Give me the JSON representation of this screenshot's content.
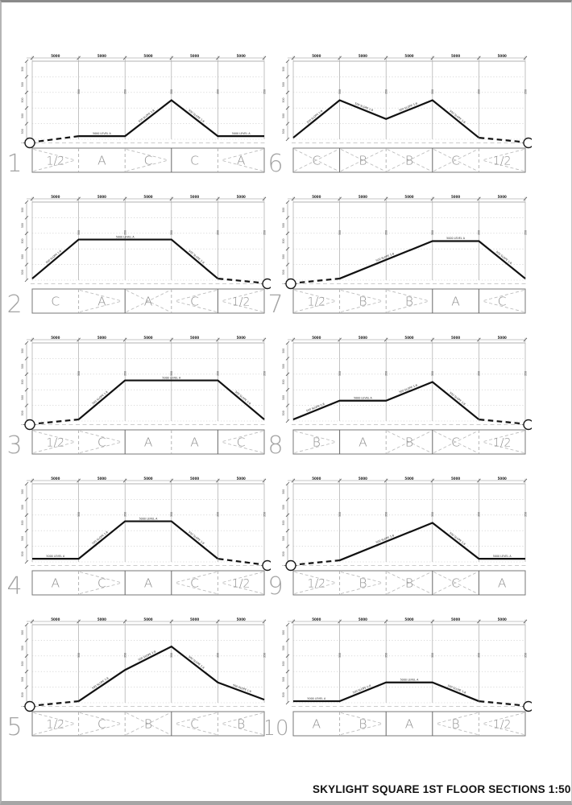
{
  "title": "SKYLIGHT SQUARE 1ST FLOOR SECTIONS 1:50",
  "annotations": {
    "top_dim": "5000",
    "side_dim": "500",
    "col_mark": "350",
    "flat_label": "5000 LEVEL A",
    "slope_label": "500 SLOPE 1:8"
  },
  "sections": [
    {
      "number": "1",
      "circle": "left",
      "labels": [
        "1/2",
        "A",
        "C",
        "C",
        "A"
      ],
      "chevrons": [
        "r",
        "",
        "r",
        "",
        "l"
      ],
      "dividers": [
        "d",
        "d",
        "s",
        "d"
      ],
      "profile_solid": [
        [
          1,
          0.04
        ],
        [
          2,
          0.04
        ],
        [
          3,
          0.5
        ],
        [
          4,
          0.04
        ],
        [
          5,
          0.04
        ]
      ],
      "profile_dashed": [
        [
          0,
          0.04
        ],
        [
          1,
          0.04
        ]
      ]
    },
    {
      "number": "2",
      "circle": "right",
      "labels": [
        "C",
        "A",
        "A",
        "C",
        "1/2"
      ],
      "chevrons": [
        "",
        "r",
        "x",
        "l",
        "l"
      ],
      "dividers": [
        "d",
        "s",
        "d",
        "s"
      ],
      "profile_solid": [
        [
          0,
          0.02
        ],
        [
          1,
          0.52
        ],
        [
          3,
          0.52
        ],
        [
          4,
          0.02
        ]
      ],
      "profile_dashed": [
        [
          4,
          0.02
        ],
        [
          5,
          0.02
        ]
      ]
    },
    {
      "number": "3",
      "circle": "left",
      "labels": [
        "1/2",
        "C",
        "A",
        "A",
        "C"
      ],
      "chevrons": [
        "r",
        "r",
        "",
        "",
        "l"
      ],
      "dividers": [
        "d",
        "s",
        "d",
        "s"
      ],
      "profile_solid": [
        [
          1,
          0.02
        ],
        [
          2,
          0.52
        ],
        [
          4,
          0.52
        ],
        [
          5,
          0.02
        ]
      ],
      "profile_dashed": [
        [
          0,
          0.02
        ],
        [
          1,
          0.02
        ]
      ]
    },
    {
      "number": "4",
      "circle": "right",
      "labels": [
        "A",
        "C",
        "A",
        "C",
        "1/2"
      ],
      "chevrons": [
        "",
        "r",
        "",
        "l",
        "l"
      ],
      "dividers": [
        "d",
        "s",
        "s",
        "d"
      ],
      "profile_solid": [
        [
          0,
          0.04
        ],
        [
          1,
          0.04
        ],
        [
          2,
          0.52
        ],
        [
          3,
          0.52
        ],
        [
          4,
          0.04
        ]
      ],
      "profile_dashed": [
        [
          4,
          0.04
        ],
        [
          5,
          0.04
        ]
      ]
    },
    {
      "number": "5",
      "circle": "left",
      "labels": [
        "1/2",
        "C",
        "B",
        "C",
        "B"
      ],
      "chevrons": [
        "r",
        "r",
        "x",
        "l",
        "l"
      ],
      "dividers": [
        "d",
        "d",
        "s",
        "d"
      ],
      "profile_solid": [
        [
          1,
          0.02
        ],
        [
          2,
          0.42
        ],
        [
          3,
          0.72
        ],
        [
          4,
          0.26
        ],
        [
          5,
          0.04
        ]
      ],
      "profile_dashed": [
        [
          0,
          0.02
        ],
        [
          1,
          0.02
        ]
      ]
    },
    {
      "number": "6",
      "circle": "right",
      "labels": [
        "C",
        "B",
        "B",
        "C",
        "1/2"
      ],
      "chevrons": [
        "x",
        "x",
        "x",
        "x",
        "l"
      ],
      "dividers": [
        "s",
        "d",
        "s",
        "d"
      ],
      "profile_solid": [
        [
          0,
          0.02
        ],
        [
          1,
          0.5
        ],
        [
          2,
          0.26
        ],
        [
          3,
          0.5
        ],
        [
          4,
          0.02
        ]
      ],
      "profile_dashed": [
        [
          4,
          0.02
        ],
        [
          5,
          0.02
        ]
      ]
    },
    {
      "number": "7",
      "circle": "left",
      "labels": [
        "1/2",
        "B",
        "B",
        "A",
        "C"
      ],
      "chevrons": [
        "r",
        "r",
        "r",
        "",
        "l"
      ],
      "dividers": [
        "d",
        "d",
        "s",
        "s"
      ],
      "profile_solid": [
        [
          1,
          0.02
        ],
        [
          3,
          0.5
        ],
        [
          4,
          0.5
        ],
        [
          5,
          0.02
        ]
      ],
      "profile_dashed": [
        [
          0,
          0.02
        ],
        [
          1,
          0.02
        ]
      ]
    },
    {
      "number": "8",
      "circle": "right",
      "labels": [
        "B",
        "A",
        "B",
        "C",
        "1/2"
      ],
      "chevrons": [
        "r",
        "",
        "x",
        "x",
        "l"
      ],
      "dividers": [
        "s",
        "d",
        "s",
        "d"
      ],
      "profile_solid": [
        [
          0,
          0.02
        ],
        [
          1,
          0.26
        ],
        [
          2,
          0.26
        ],
        [
          3,
          0.5
        ],
        [
          4,
          0.02
        ]
      ],
      "profile_dashed": [
        [
          4,
          0.02
        ],
        [
          5,
          0.02
        ]
      ]
    },
    {
      "number": "9",
      "circle": "left",
      "labels": [
        "1/2",
        "B",
        "B",
        "C",
        "A"
      ],
      "chevrons": [
        "r",
        "r",
        "x",
        "x",
        ""
      ],
      "dividers": [
        "d",
        "d",
        "s",
        "s"
      ],
      "profile_solid": [
        [
          1,
          0.02
        ],
        [
          3,
          0.5
        ],
        [
          4,
          0.04
        ],
        [
          5,
          0.04
        ]
      ],
      "profile_dashed": [
        [
          0,
          0.02
        ],
        [
          1,
          0.02
        ]
      ]
    },
    {
      "number": "10",
      "circle": "right",
      "labels": [
        "A",
        "B",
        "A",
        "B",
        "1/2"
      ],
      "chevrons": [
        "",
        "r",
        "",
        "l",
        "l"
      ],
      "dividers": [
        "d",
        "s",
        "s",
        "d"
      ],
      "profile_solid": [
        [
          0,
          0.02
        ],
        [
          1,
          0.02
        ],
        [
          2,
          0.26
        ],
        [
          3,
          0.26
        ],
        [
          4,
          0.02
        ]
      ],
      "profile_dashed": [
        [
          4,
          0.02
        ],
        [
          5,
          0.02
        ]
      ]
    }
  ],
  "layout": {
    "columns_per_grid": 5,
    "scale_note": "1:50"
  }
}
